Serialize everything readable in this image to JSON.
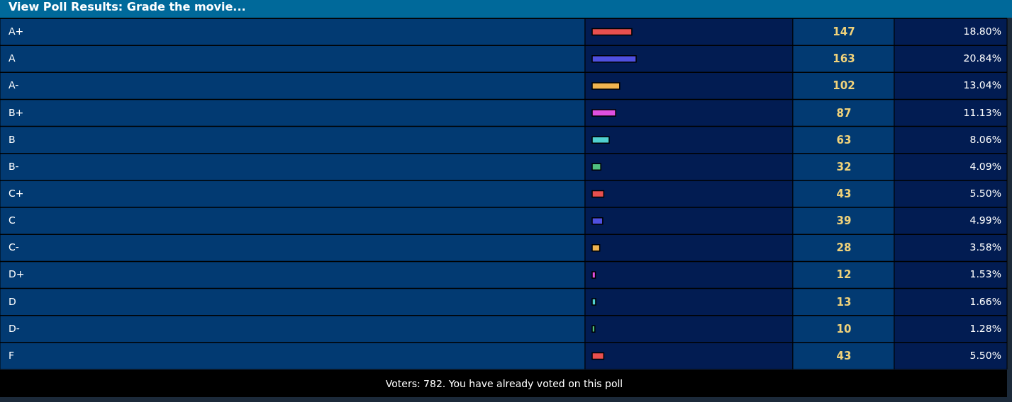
{
  "chart_data": {
    "type": "bar",
    "orientation": "horizontal",
    "title": "View Poll Results: Grade the movie...",
    "categories": [
      "A+",
      "A",
      "A-",
      "B+",
      "B",
      "B-",
      "C+",
      "C",
      "C-",
      "D+",
      "D",
      "D-",
      "F"
    ],
    "values": [
      147,
      163,
      102,
      87,
      63,
      32,
      43,
      39,
      28,
      12,
      13,
      10,
      43
    ],
    "colors": [
      "#e8504f",
      "#5050e0",
      "#f0b450",
      "#e050e0",
      "#50d0d0",
      "#50c080",
      "#e8504f",
      "#5050e0",
      "#f0b450",
      "#e050e0",
      "#50d0d0",
      "#50c080",
      "#e8504f"
    ],
    "data_labels": true,
    "annotations": [
      "18.80%",
      "20.84%",
      "13.04%",
      "11.13%",
      "8.06%",
      "4.09%",
      "5.50%",
      "4.99%",
      "3.58%",
      "1.53%",
      "1.66%",
      "1.28%",
      "5.50%",
      "Voters: 782. You have already voted on this poll"
    ]
  }
}
